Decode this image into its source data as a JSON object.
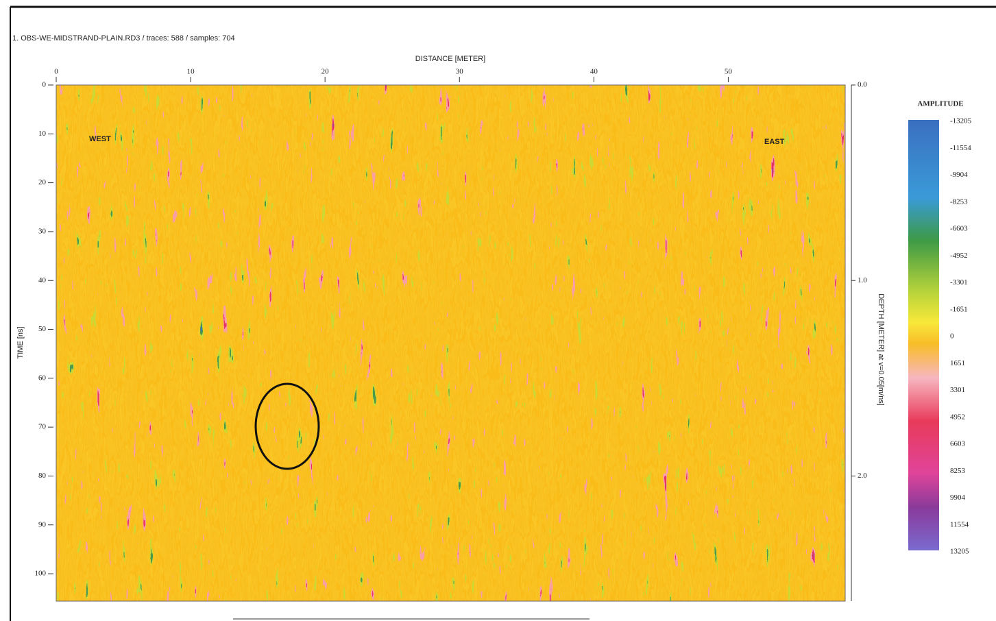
{
  "window_title": "1. OBS-WE-MIDSTRAND-PLAIN.RD3 / traces: 588 / samples: 704",
  "plot": {
    "x_axis": {
      "label": "DISTANCE [METER]",
      "lim": [
        0,
        58.7
      ],
      "ticks": [
        0,
        10,
        20,
        30,
        40,
        50
      ]
    },
    "y_axis": {
      "label": "TIME [ns]",
      "lim": [
        0,
        105.6
      ],
      "ticks": [
        0,
        10,
        20,
        30,
        40,
        50,
        60,
        70,
        80,
        90,
        100
      ]
    },
    "y2_axis": {
      "label": "DEPTH [METER] at v=0.05[m/ns]",
      "lim": [
        0,
        2.64
      ],
      "ticks": [
        {
          "value": 0,
          "label": "0.0"
        },
        {
          "value": 1,
          "label": "1.0"
        },
        {
          "value": 2,
          "label": "2.0"
        }
      ]
    },
    "annotations": [
      "WEST",
      "EAST"
    ]
  },
  "colorbar": {
    "title": "AMPLITUDE",
    "labels": [
      "-13205",
      "-11554",
      "-9904",
      "-8253",
      "-6603",
      "-4952",
      "-3301",
      "-1651",
      "0",
      "1651",
      "3301",
      "4952",
      "6603",
      "8253",
      "9904",
      "11554",
      "13205"
    ]
  }
}
